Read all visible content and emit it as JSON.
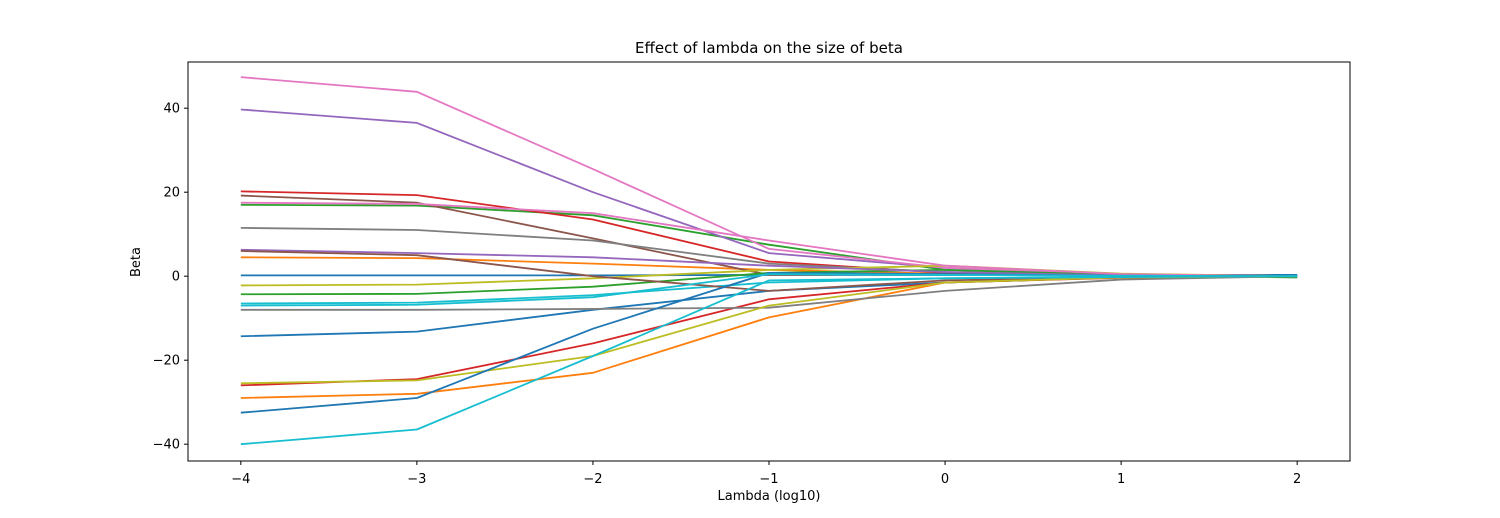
{
  "chart_data": {
    "type": "line",
    "title": "Effect of lambda on the size of beta",
    "xlabel": "Lambda (log10)",
    "ylabel": "Beta",
    "x": [
      -4,
      -3,
      -2,
      -1,
      0,
      1,
      2
    ],
    "xlim": [
      -4.3,
      2.3
    ],
    "ylim": [
      -44,
      51
    ],
    "xticks": [
      -4,
      -3,
      -2,
      -1,
      0,
      1,
      2
    ],
    "xtick_labels": [
      "−4",
      "−3",
      "−2",
      "−1",
      "0",
      "1",
      "2"
    ],
    "yticks": [
      -40,
      -20,
      0,
      20,
      40
    ],
    "ytick_labels": [
      "−40",
      "−20",
      "0",
      "20",
      "40"
    ],
    "grid": false,
    "series": [
      {
        "color": "#1f77b4",
        "values": [
          0.2,
          0.2,
          0.2,
          0.3,
          0.3,
          0.3,
          0.3
        ]
      },
      {
        "color": "#ff7f0e",
        "values": [
          4.5,
          4.3,
          3.0,
          1.5,
          0.6,
          0.1,
          0.0
        ]
      },
      {
        "color": "#2ca02c",
        "values": [
          17.0,
          16.8,
          14.5,
          7.5,
          1.5,
          0.3,
          0.0
        ]
      },
      {
        "color": "#d62728",
        "values": [
          20.2,
          19.3,
          13.5,
          3.5,
          0.8,
          0.1,
          0.0
        ]
      },
      {
        "color": "#9467bd",
        "values": [
          39.7,
          36.5,
          20.0,
          5.5,
          2.0,
          0.4,
          0.0
        ]
      },
      {
        "color": "#8c564b",
        "values": [
          19.2,
          17.5,
          9.0,
          0.3,
          0.5,
          0.1,
          0.0
        ]
      },
      {
        "color": "#e377c2",
        "values": [
          47.4,
          43.9,
          25.5,
          6.5,
          2.0,
          0.4,
          0.0
        ]
      },
      {
        "color": "#7f7f7f",
        "values": [
          11.5,
          11.0,
          8.5,
          3.0,
          1.0,
          0.2,
          0.0
        ]
      },
      {
        "color": "#bcbd22",
        "values": [
          -2.2,
          -2.0,
          -0.5,
          1.5,
          2.5,
          0.6,
          0.0
        ]
      },
      {
        "color": "#17becf",
        "values": [
          -6.5,
          -6.3,
          -4.5,
          -1.5,
          -0.5,
          -0.1,
          0.0
        ]
      },
      {
        "color": "#1f77b4",
        "values": [
          -14.3,
          -13.2,
          -8.0,
          -3.5,
          -1.5,
          -0.3,
          0.0
        ]
      },
      {
        "color": "#ff7f0e",
        "values": [
          -29.0,
          -28.0,
          -23.0,
          -9.8,
          -1.5,
          -0.3,
          0.0
        ]
      },
      {
        "color": "#2ca02c",
        "values": [
          -4.3,
          -4.2,
          -2.5,
          0.8,
          1.5,
          0.3,
          -0.3
        ]
      },
      {
        "color": "#d62728",
        "values": [
          -26.0,
          -24.5,
          -16.0,
          -5.5,
          -1.5,
          -0.4,
          0.0
        ]
      },
      {
        "color": "#9467bd",
        "values": [
          6.3,
          5.5,
          4.5,
          2.5,
          1.0,
          0.2,
          0.0
        ]
      },
      {
        "color": "#8c564b",
        "values": [
          6.0,
          5.0,
          0.0,
          -3.5,
          -1.0,
          -0.2,
          0.0
        ]
      },
      {
        "color": "#e377c2",
        "values": [
          17.5,
          17.2,
          15.0,
          8.5,
          2.5,
          0.5,
          0.0
        ]
      },
      {
        "color": "#7f7f7f",
        "values": [
          -8.0,
          -8.0,
          -7.8,
          -7.5,
          -3.5,
          -0.8,
          0.0
        ]
      },
      {
        "color": "#bcbd22",
        "values": [
          -25.5,
          -24.8,
          -19.0,
          -7.0,
          -1.5,
          -0.3,
          0.0
        ]
      },
      {
        "color": "#17becf",
        "values": [
          -40.0,
          -36.5,
          -19.0,
          -1.0,
          -0.5,
          -0.2,
          0.0
        ]
      },
      {
        "color": "#1f77b4",
        "values": [
          -32.5,
          -29.0,
          -12.5,
          0.8,
          0.5,
          0.1,
          0.0
        ]
      },
      {
        "color": "#17becf",
        "values": [
          -7.0,
          -6.8,
          -5.0,
          0.5,
          0.3,
          0.1,
          0.0
        ]
      }
    ]
  }
}
